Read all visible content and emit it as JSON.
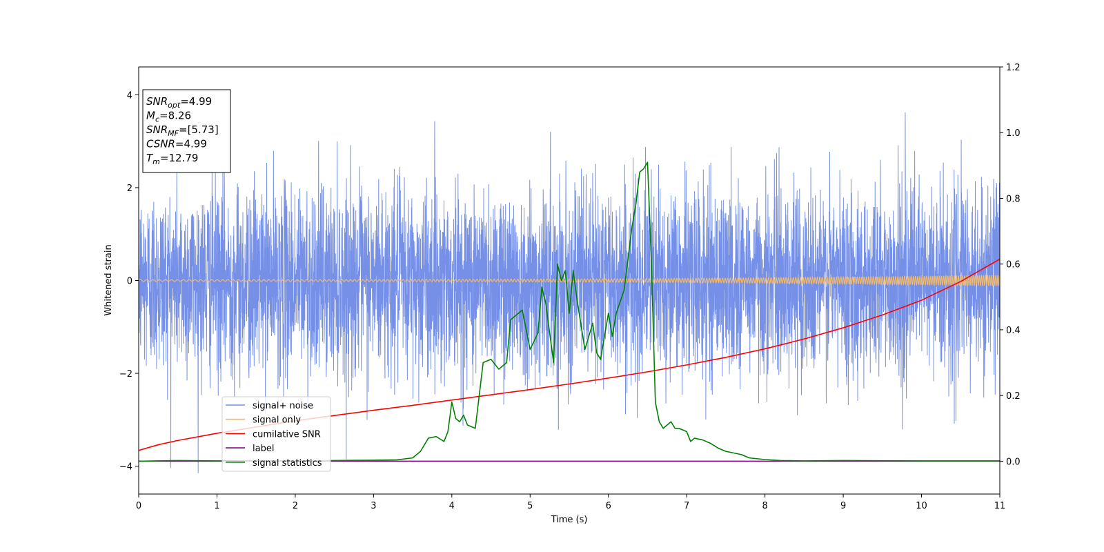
{
  "chart_data": {
    "type": "line",
    "xlabel": "Time (s)",
    "ylabel": "Whitened strain",
    "xlim": [
      0,
      11
    ],
    "ylim": [
      -4.6,
      4.6
    ],
    "y2lim": [
      -0.1,
      1.2
    ],
    "xticks": [
      "0",
      "1",
      "2",
      "3",
      "4",
      "5",
      "6",
      "7",
      "8",
      "9",
      "10",
      "11"
    ],
    "yticks": [
      "−4",
      "−2",
      "0",
      "2",
      "4"
    ],
    "y2ticks": [
      "0.0",
      "0.2",
      "0.4",
      "0.6",
      "0.8",
      "1.0",
      "1.2"
    ],
    "grid": false,
    "legend_placement": "lower-left",
    "stats_box": [
      {
        "base": "SNR",
        "sub": "opt",
        "value": "=4.99"
      },
      {
        "base": "M",
        "sub": "c",
        "value": "=8.26"
      },
      {
        "base": "SNR",
        "sub": "MF",
        "value": "=[5.73]"
      },
      {
        "base": "CSNR",
        "sub": "",
        "value": "=4.99"
      },
      {
        "base": "T",
        "sub": "m",
        "value": "=12.79"
      }
    ],
    "series": [
      {
        "name": "signal+ noise",
        "color": "#7590e6",
        "axis": "left",
        "style": "noise",
        "amplitude_sd": 1.0,
        "peak_max": 4.15,
        "peak_min": -4.15,
        "time_range": [
          0,
          11
        ]
      },
      {
        "name": "signal only",
        "color": "#f4b967",
        "axis": "left",
        "style": "chirp",
        "amplitude_start": 0.02,
        "amplitude_end": 0.12,
        "time_range": [
          0,
          11
        ]
      },
      {
        "name": "cumilative SNR",
        "color": "#ff0000",
        "axis": "right",
        "x": [
          0,
          0.25,
          0.5,
          1,
          1.5,
          2,
          2.5,
          3,
          3.5,
          4,
          4.5,
          5,
          5.5,
          6,
          6.5,
          7,
          7.5,
          8,
          8.5,
          9,
          9.5,
          10,
          10.5,
          11
        ],
        "values": [
          0.033,
          0.05,
          0.063,
          0.085,
          0.104,
          0.123,
          0.139,
          0.155,
          0.17,
          0.186,
          0.202,
          0.218,
          0.235,
          0.253,
          0.272,
          0.293,
          0.316,
          0.342,
          0.372,
          0.406,
          0.445,
          0.49,
          0.547,
          0.615
        ]
      },
      {
        "name": "label",
        "color": "#800080",
        "axis": "right",
        "x": [
          0,
          11
        ],
        "values": [
          0,
          0
        ]
      },
      {
        "name": "signal statistics",
        "color": "#008000",
        "axis": "right",
        "x": [
          0,
          0.5,
          1,
          1.5,
          2,
          2.5,
          3,
          3.3,
          3.5,
          3.6,
          3.7,
          3.8,
          3.9,
          3.95,
          4.0,
          4.05,
          4.1,
          4.15,
          4.2,
          4.3,
          4.4,
          4.5,
          4.6,
          4.7,
          4.75,
          4.8,
          4.9,
          5.0,
          5.1,
          5.15,
          5.2,
          5.3,
          5.35,
          5.4,
          5.45,
          5.5,
          5.55,
          5.6,
          5.7,
          5.75,
          5.8,
          5.85,
          5.9,
          6.0,
          6.05,
          6.1,
          6.2,
          6.3,
          6.35,
          6.4,
          6.45,
          6.5,
          6.55,
          6.6,
          6.65,
          6.7,
          6.75,
          6.8,
          6.85,
          6.9,
          7.0,
          7.05,
          7.1,
          7.2,
          7.3,
          7.4,
          7.5,
          7.6,
          7.7,
          7.8,
          8.0,
          8.2,
          8.5,
          9,
          10,
          11
        ],
        "values": [
          0.0,
          0.002,
          0.001,
          0.002,
          0.001,
          0.002,
          0.003,
          0.004,
          0.01,
          0.03,
          0.07,
          0.075,
          0.06,
          0.09,
          0.18,
          0.13,
          0.12,
          0.14,
          0.11,
          0.1,
          0.3,
          0.31,
          0.28,
          0.3,
          0.43,
          0.44,
          0.46,
          0.34,
          0.39,
          0.53,
          0.48,
          0.3,
          0.6,
          0.55,
          0.58,
          0.45,
          0.58,
          0.49,
          0.34,
          0.38,
          0.42,
          0.33,
          0.31,
          0.45,
          0.38,
          0.45,
          0.52,
          0.71,
          0.78,
          0.88,
          0.89,
          0.91,
          0.6,
          0.18,
          0.12,
          0.1,
          0.11,
          0.12,
          0.1,
          0.1,
          0.09,
          0.06,
          0.07,
          0.065,
          0.055,
          0.04,
          0.03,
          0.025,
          0.02,
          0.01,
          0.005,
          0.002,
          0.001,
          0.002,
          0.001,
          0.001
        ]
      }
    ]
  }
}
